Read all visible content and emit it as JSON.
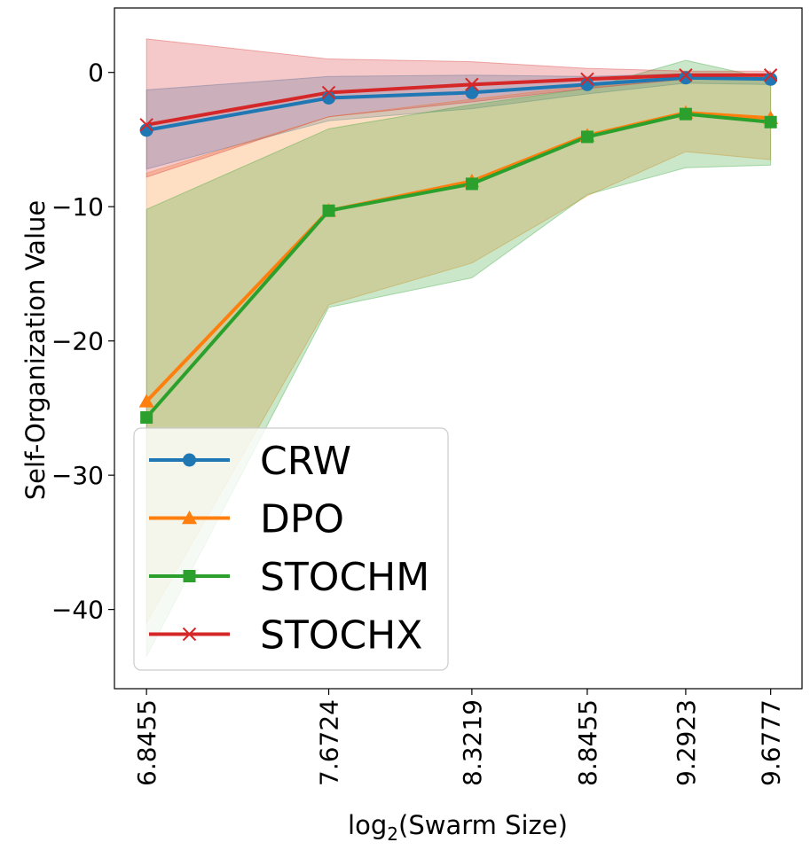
{
  "chart_data": {
    "type": "line",
    "xlabel": "log",
    "xlabel_sub": "2",
    "xlabel_rest": "(Swarm Size)",
    "ylabel": "Self-Organization Value",
    "x": [
      6.8455,
      7.6724,
      8.3219,
      8.8455,
      9.2923,
      9.6777
    ],
    "x_tick_labels": [
      "6.8455",
      "7.6724",
      "8.3219",
      "8.8455",
      "9.2923",
      "9.6777"
    ],
    "xlim": [
      6.7,
      9.82
    ],
    "ylim": [
      -45.9,
      4.8
    ],
    "y_ticks": [
      0,
      -10,
      -20,
      -30,
      -40
    ],
    "y_tick_labels": [
      "0",
      "−10",
      "−20",
      "−30",
      "−40"
    ],
    "grid": false,
    "legend_placement": "lower-left",
    "series": [
      {
        "name": "CRW",
        "color": "#1f77b4",
        "marker": "circle",
        "values": [
          -4.3,
          -1.9,
          -1.5,
          -0.9,
          -0.4,
          -0.5
        ],
        "band_upper": [
          -1.3,
          -0.3,
          -0.2,
          -0.3,
          -0.1,
          -0.1
        ],
        "band_lower": [
          -7.2,
          -3.6,
          -2.7,
          -1.6,
          -0.8,
          -0.9
        ]
      },
      {
        "name": "DPO",
        "color": "#ff7f0e",
        "marker": "triangle",
        "values": [
          -24.5,
          -10.3,
          -8.1,
          -4.7,
          -3.0,
          -3.4
        ],
        "band_upper": [
          -7.5,
          -3.3,
          -2.0,
          -1.0,
          -0.4,
          -0.4
        ],
        "band_lower": [
          -41.0,
          -17.3,
          -14.2,
          -9.2,
          -5.9,
          -6.5
        ]
      },
      {
        "name": "STOCHM",
        "color": "#2ca02c",
        "marker": "square",
        "values": [
          -25.7,
          -10.3,
          -8.3,
          -4.8,
          -3.1,
          -3.7
        ],
        "band_upper": [
          -10.2,
          -4.2,
          -2.4,
          -1.2,
          0.9,
          -0.5
        ],
        "band_lower": [
          -43.5,
          -17.5,
          -15.3,
          -9.1,
          -7.1,
          -6.9
        ]
      },
      {
        "name": "STOCHX",
        "color": "#d62728",
        "marker": "x",
        "values": [
          -3.9,
          -1.5,
          -0.9,
          -0.5,
          -0.2,
          -0.2
        ],
        "band_upper": [
          2.5,
          1.0,
          0.8,
          0.3,
          0.1,
          0.1
        ],
        "band_lower": [
          -7.8,
          -3.3,
          -2.2,
          -1.2,
          -0.5,
          -0.5
        ]
      }
    ]
  }
}
